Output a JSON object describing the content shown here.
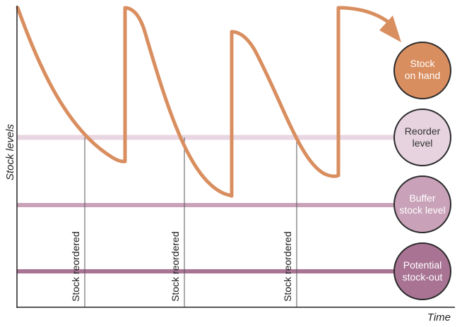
{
  "axes": {
    "y_label": "Stock levels",
    "x_label": "Time"
  },
  "reorder_markers": [
    {
      "label": "Stock reordered"
    },
    {
      "label": "Stock reordered"
    },
    {
      "label": "Stock reordered"
    }
  ],
  "legend": [
    {
      "id": "stock-on-hand",
      "lines": [
        "Stock",
        "on hand"
      ],
      "fill": "#d98e5f",
      "text_color": "#ffffff"
    },
    {
      "id": "reorder-level",
      "lines": [
        "Reorder",
        "level"
      ],
      "fill": "#e6d3df",
      "text_color": "#333333"
    },
    {
      "id": "buffer-stock-level",
      "lines": [
        "Buffer",
        "stock level"
      ],
      "fill": "#c9a2b9",
      "text_color": "#ffffff"
    },
    {
      "id": "potential-stock-out",
      "lines": [
        "Potential",
        "stock-out"
      ],
      "fill": "#a97494",
      "text_color": "#ffffff"
    }
  ],
  "colors": {
    "stock_line": "#d98e5f",
    "reorder_band": "#e8d6e2",
    "buffer_band": "#c9a2b9",
    "stockout_band": "#a97494",
    "axis": "#222222",
    "circle_outline": "#2b2b2b"
  }
}
